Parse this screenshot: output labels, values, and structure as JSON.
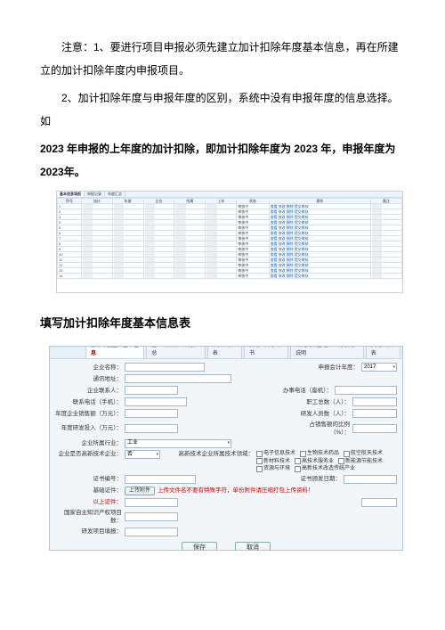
{
  "para1": "注意：1、要进行项目申报必须先建立加计扣除年度基本信息，再在所建立的加计扣除年度内申报项目。",
  "para2_a": "2、加计扣除年度与申报年度的区别，系统中没有申报年度的信息选择。如",
  "para2_b": "2023 年申报的上年度的加计扣除，即加计扣除年度为 2023 年，申报年度为 2023年。",
  "section_title": "填写加计扣除年度基本信息表",
  "shot1": {
    "tabs": [
      "基本信息填报",
      "申报记录",
      "年度汇总"
    ],
    "headers": [
      "序号",
      "加计",
      "年度",
      "企业",
      "所属",
      "上年",
      "状态",
      "操作",
      "备注"
    ],
    "rowcount": 14,
    "status_text": "审核中",
    "ops": [
      "查看",
      "修改",
      "删除",
      "提交审核"
    ]
  },
  "shot2": {
    "navtabs": [
      "加计年度企业基本信息",
      "企业研发项目填报汇总",
      "项目归集表",
      "资助公开承诺书",
      "研究成果登记和应用情况说明",
      "费用归集表"
    ],
    "fields": {
      "company_name": "企业名称：",
      "reg_year": "申报会计年度：",
      "reg_year_val": "2017",
      "comm_addr": "通讯地址：",
      "contact": "企业联系人：",
      "phone": "办事电话（座机）：",
      "mobile": "联系电话（手机）：",
      "staff": "职工总数（人）：",
      "sales": "年度企业销售额（万元）：",
      "rd_staff": "研发人员数（人）：",
      "rd_expense": "年度研发投入（万元）：",
      "ratio": "占销售额的比例（%）：",
      "industry": "企业所属行业：",
      "industry_val": "工业",
      "hightech": "企业是否高新技术企业：",
      "hightech_val": "否",
      "field": "高新技术企业所属技术领域：",
      "cert_no": "证书编号：",
      "cert_date": "证书颁发日期：",
      "basic_cert": "基础证件：",
      "upload": "上传附件",
      "upload_note": "上传文件名不要有特殊字符，单份附件请压缩打包上传资料！",
      "verify": "以上证件：",
      "iprs": "国家自主知识产权项目数：",
      "rd_proj": "研发项目填报：",
      "save_btn": "保存",
      "cancel_btn": "取消"
    },
    "checkboxes": [
      "电子信息技术",
      "生物技术药品",
      "航空航天技术",
      "新材料技术",
      "高技术服务业",
      "新能源节能技术",
      "资源与环境",
      "高新技术改造传统产业"
    ]
  }
}
